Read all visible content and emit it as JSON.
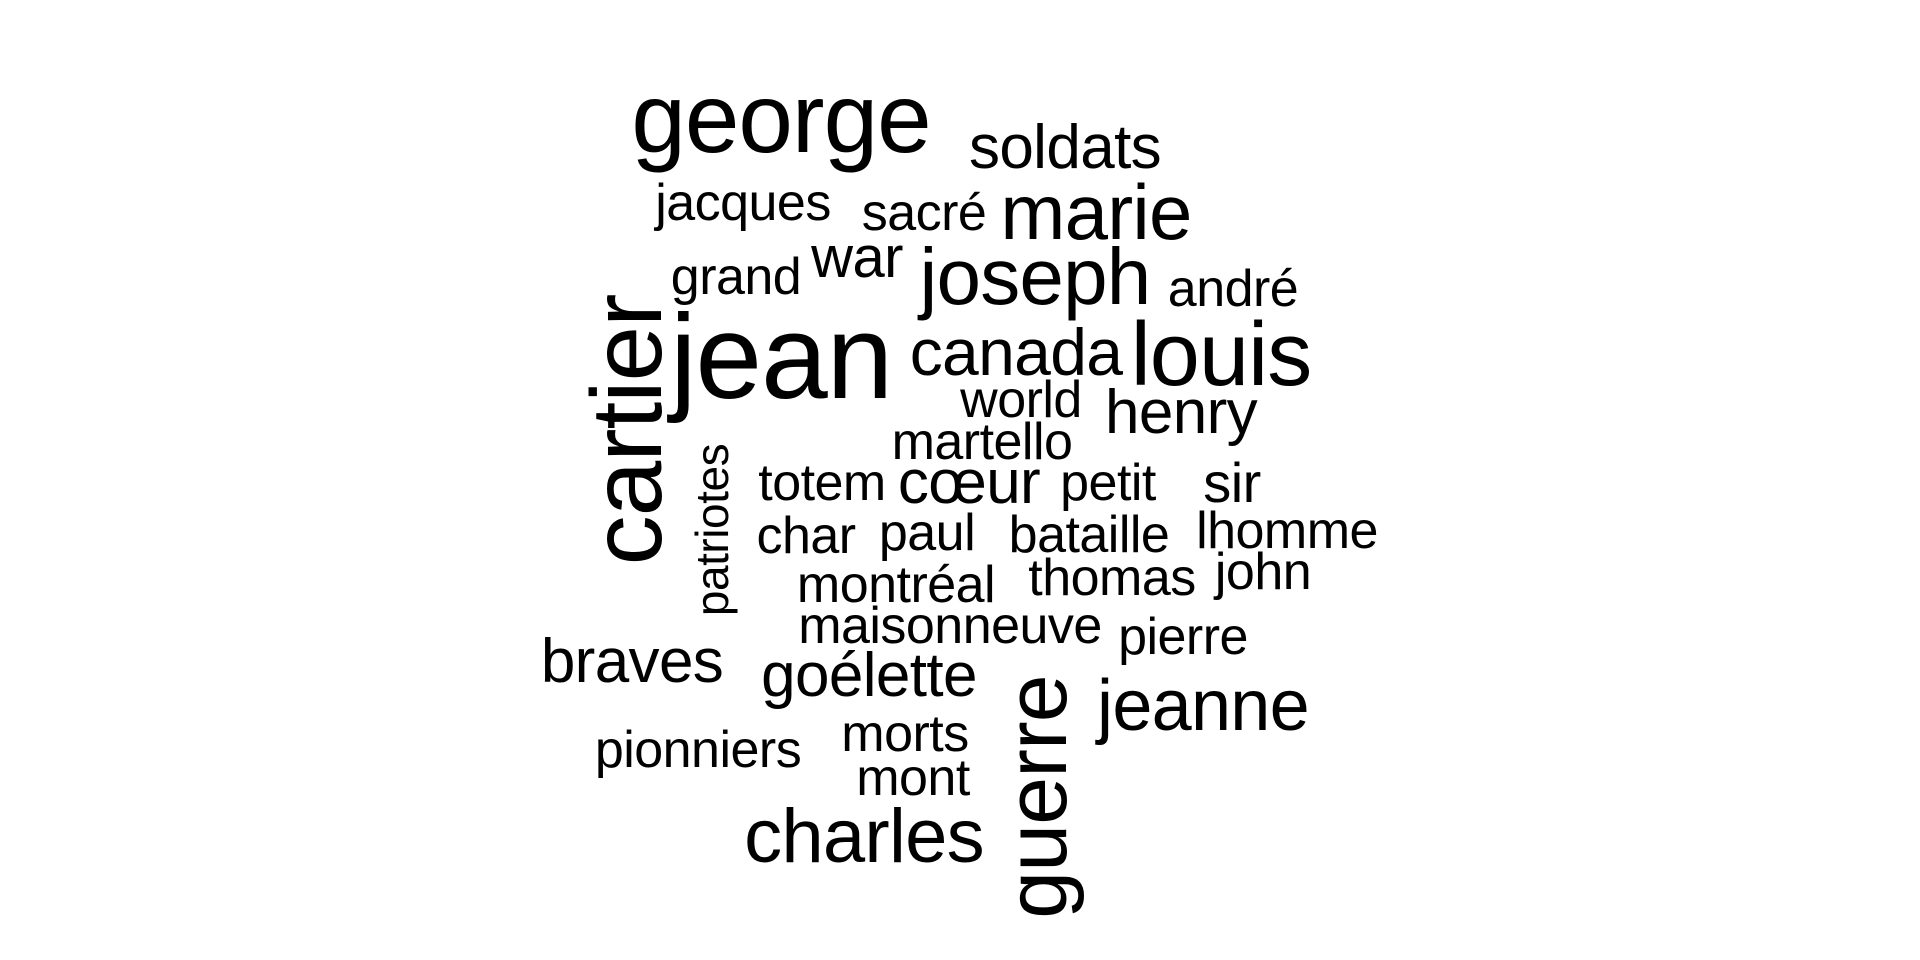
{
  "word_cloud": {
    "words": [
      {
        "text": "george",
        "orientation": "horizontal"
      },
      {
        "text": "soldats",
        "orientation": "horizontal"
      },
      {
        "text": "jacques",
        "orientation": "horizontal"
      },
      {
        "text": "sacré",
        "orientation": "horizontal"
      },
      {
        "text": "marie",
        "orientation": "horizontal"
      },
      {
        "text": "grand",
        "orientation": "horizontal"
      },
      {
        "text": "war",
        "orientation": "horizontal"
      },
      {
        "text": "joseph",
        "orientation": "horizontal"
      },
      {
        "text": "andré",
        "orientation": "horizontal"
      },
      {
        "text": "jean",
        "orientation": "horizontal"
      },
      {
        "text": "canada",
        "orientation": "horizontal"
      },
      {
        "text": "louis",
        "orientation": "horizontal"
      },
      {
        "text": "cartier",
        "orientation": "vertical"
      },
      {
        "text": "world",
        "orientation": "horizontal"
      },
      {
        "text": "henry",
        "orientation": "horizontal"
      },
      {
        "text": "martello",
        "orientation": "horizontal"
      },
      {
        "text": "patriotes",
        "orientation": "vertical"
      },
      {
        "text": "totem",
        "orientation": "horizontal"
      },
      {
        "text": "cœur",
        "orientation": "horizontal"
      },
      {
        "text": "petit",
        "orientation": "horizontal"
      },
      {
        "text": "sir",
        "orientation": "horizontal"
      },
      {
        "text": "char",
        "orientation": "horizontal"
      },
      {
        "text": "paul",
        "orientation": "horizontal"
      },
      {
        "text": "bataille",
        "orientation": "horizontal"
      },
      {
        "text": "lhomme",
        "orientation": "horizontal"
      },
      {
        "text": "montréal",
        "orientation": "horizontal"
      },
      {
        "text": "thomas",
        "orientation": "horizontal"
      },
      {
        "text": "john",
        "orientation": "horizontal"
      },
      {
        "text": "maisonneuve",
        "orientation": "horizontal"
      },
      {
        "text": "pierre",
        "orientation": "horizontal"
      },
      {
        "text": "braves",
        "orientation": "horizontal"
      },
      {
        "text": "goélette",
        "orientation": "horizontal"
      },
      {
        "text": "guerre",
        "orientation": "vertical"
      },
      {
        "text": "jeanne",
        "orientation": "horizontal"
      },
      {
        "text": "pionniers",
        "orientation": "horizontal"
      },
      {
        "text": "morts",
        "orientation": "horizontal"
      },
      {
        "text": "mont",
        "orientation": "horizontal"
      },
      {
        "text": "charles",
        "orientation": "horizontal"
      }
    ],
    "text_color": "#000000",
    "background_color": "#ffffff"
  }
}
